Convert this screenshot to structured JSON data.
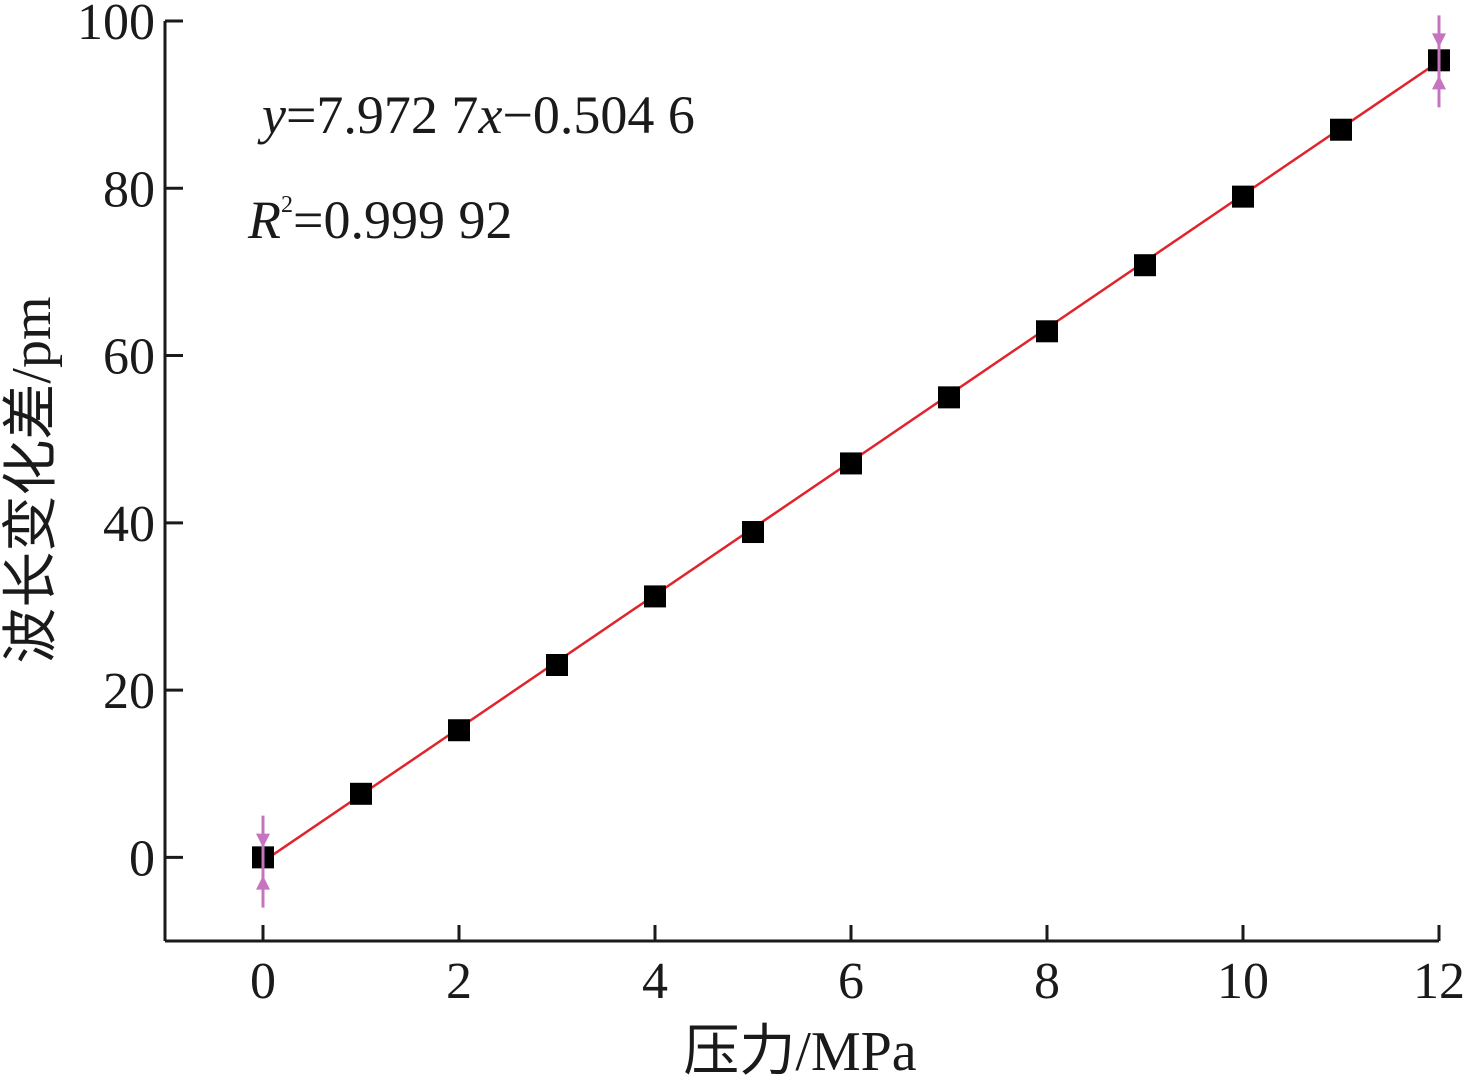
{
  "chart_data": {
    "type": "scatter",
    "title": "",
    "xlabel": "压力/MPa",
    "ylabel": "波长变化差/pm",
    "xlim": [
      -1,
      12
    ],
    "ylim": [
      -10,
      100
    ],
    "xticks": [
      "0",
      "2",
      "4",
      "6",
      "8",
      "10",
      "12"
    ],
    "yticks": [
      "0",
      "20",
      "40",
      "60",
      "80",
      "100"
    ],
    "grid": false,
    "series": [
      {
        "marker": "square",
        "color": "#000000",
        "x": [
          0,
          1,
          2,
          3,
          4,
          5,
          6,
          7,
          8,
          9,
          10,
          11,
          12
        ],
        "y": [
          0,
          7.6,
          15.2,
          23.0,
          31.2,
          38.9,
          47.1,
          55.0,
          62.9,
          70.8,
          79.0,
          87.0,
          95.3
        ]
      }
    ],
    "fit": {
      "slope": 7.9727,
      "intercept": -0.5046,
      "color": "#e0242c",
      "equation_text": {
        "y": "y",
        "eq1": "=7.972 7",
        "x": "x",
        "eq2": "−0.504 6"
      },
      "r2_text": {
        "r": "R",
        "sup": "2",
        "eq": "=0.999 92"
      }
    },
    "range_markers": {
      "color": "#c774c0",
      "x": [
        0,
        12
      ]
    }
  }
}
